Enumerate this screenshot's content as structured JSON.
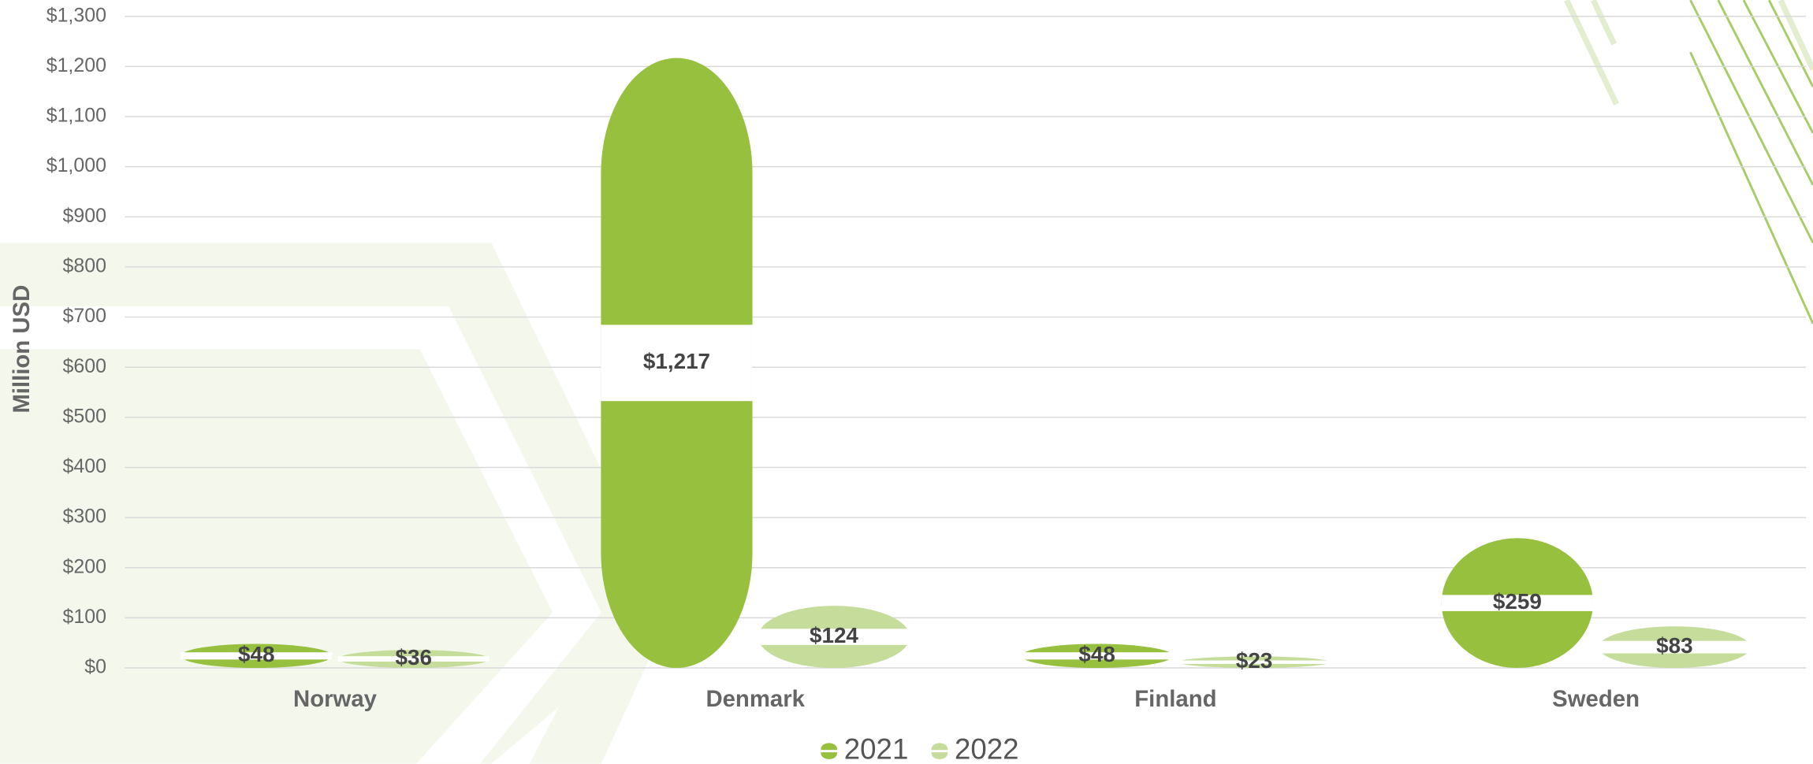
{
  "chart_data": {
    "type": "bar",
    "y_label": "Million USD",
    "categories": [
      "Norway",
      "Denmark",
      "Finland",
      "Sweden"
    ],
    "series": [
      {
        "name": "2021",
        "color": "#96c03e",
        "values": [
          48,
          1217,
          48,
          259
        ],
        "value_labels": [
          "$48",
          "$1,217",
          "$48",
          "$259"
        ]
      },
      {
        "name": "2022",
        "color": "#c5dc9a",
        "values": [
          36,
          124,
          23,
          83
        ],
        "value_labels": [
          "$36",
          "$124",
          "$23",
          "$83"
        ]
      }
    ],
    "ylim": [
      0,
      1300
    ],
    "yticks": [
      {
        "value": 0,
        "label": "$0"
      },
      {
        "value": 100,
        "label": "$100"
      },
      {
        "value": 200,
        "label": "$200"
      },
      {
        "value": 300,
        "label": "$300"
      },
      {
        "value": 400,
        "label": "$400"
      },
      {
        "value": 500,
        "label": "$500"
      },
      {
        "value": 600,
        "label": "$600"
      },
      {
        "value": 700,
        "label": "$700"
      },
      {
        "value": 800,
        "label": "$800"
      },
      {
        "value": 900,
        "label": "$900"
      },
      {
        "value": 1000,
        "label": "$1,000"
      },
      {
        "value": 1100,
        "label": "$1,100"
      },
      {
        "value": 1200,
        "label": "$1,200"
      },
      {
        "value": 1300,
        "label": "$1,300"
      }
    ],
    "grid": true,
    "legend": "bottom"
  }
}
